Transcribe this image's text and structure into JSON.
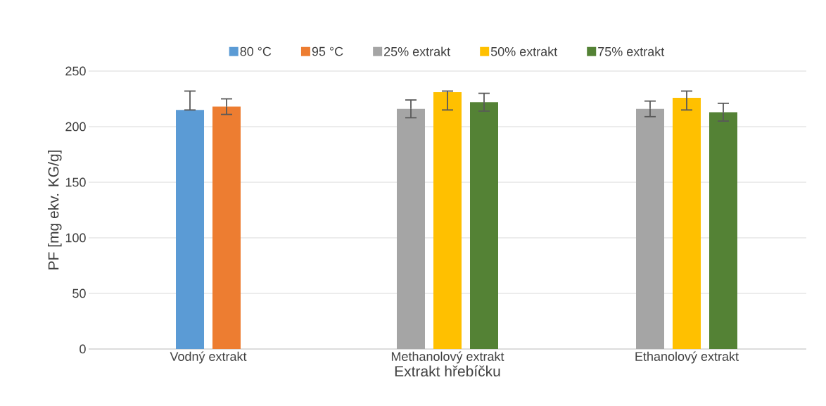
{
  "chart_data": {
    "type": "bar",
    "xlabel": "Extrakt hřebíčku",
    "ylabel": "PF [mg ekv. KG/g]",
    "categories": [
      "Vodný extrakt",
      "Methanolový extrakt",
      "Ethanolový extrakt"
    ],
    "series": [
      {
        "name": "80 °C",
        "color": "#5b9bd5",
        "values": [
          215,
          null,
          null
        ],
        "errors": [
          [
            215,
            232
          ],
          null,
          null
        ]
      },
      {
        "name": "95 °C",
        "color": "#ed7d31",
        "values": [
          218,
          null,
          null
        ],
        "errors": [
          7,
          null,
          null
        ]
      },
      {
        "name": "25% extrakt",
        "color": "#a5a5a5",
        "values": [
          null,
          216,
          216
        ],
        "errors": [
          null,
          8,
          7
        ]
      },
      {
        "name": "50% extrakt",
        "color": "#ffc000",
        "values": [
          null,
          231,
          226
        ],
        "errors": [
          null,
          [
            215,
            232
          ],
          [
            215,
            232
          ]
        ]
      },
      {
        "name": "75% extrakt",
        "color": "#548235",
        "values": [
          null,
          222,
          213
        ],
        "errors": [
          null,
          8,
          8
        ]
      }
    ],
    "ylim": [
      0,
      250
    ],
    "yticks": [
      0,
      50,
      100,
      150,
      200,
      250
    ],
    "grid": "y",
    "legend": "top"
  }
}
